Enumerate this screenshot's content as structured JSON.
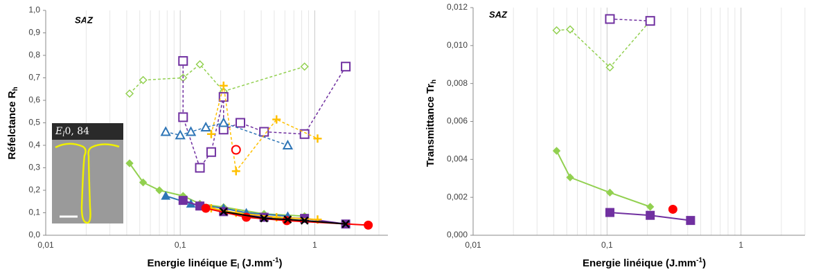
{
  "chart_data": [
    {
      "type": "scatter",
      "log_x": true,
      "x_grid": true,
      "x_minor_grid": true,
      "y_grid": false,
      "ylabel": [
        "Réfelctance R",
        "h"
      ],
      "xlabel": [
        "Energie linéique E",
        "l",
        " (J.mm",
        "-1",
        ")"
      ],
      "annotation": "SAZ",
      "inset_label": [
        "E",
        "l",
        "0, 84"
      ],
      "xlim": [
        0.01,
        3.5
      ],
      "xticks": [
        {
          "value": 0.01,
          "label": "0,01"
        },
        {
          "value": 0.1,
          "label": "0,1"
        },
        1
      ],
      "ylim": [
        0,
        1
      ],
      "yticks": [
        {
          "value": 0,
          "label": "0,0"
        },
        {
          "value": 0.1,
          "label": "0,1"
        },
        {
          "value": 0.2,
          "label": "0,2"
        },
        {
          "value": 0.3,
          "label": "0,3"
        },
        {
          "value": 0.4,
          "label": "0,4"
        },
        {
          "value": 0.5,
          "label": "0,5"
        },
        {
          "value": 0.6,
          "label": "0,6"
        },
        {
          "value": 0.7,
          "label": "0,7"
        },
        {
          "value": 0.8,
          "label": "0,8"
        },
        {
          "value": 0.9,
          "label": "0,9"
        },
        {
          "value": 1,
          "label": "1,0"
        }
      ],
      "series": [
        {
          "color": "#92d050",
          "marker": "diamond",
          "filled": false,
          "line": "dashed",
          "x": [
            0.042,
            0.053,
            0.105,
            0.14,
            0.21,
            0.84
          ],
          "values": [
            0.63,
            0.69,
            0.7,
            0.76,
            0.64,
            0.75
          ]
        },
        {
          "color": "#7030a0",
          "marker": "square",
          "filled": false,
          "line": "dashed",
          "x": [
            0.105,
            0.105,
            0.14,
            0.17,
            0.21,
            0.21,
            0.28,
            0.42,
            0.84,
            1.7
          ],
          "values": [
            0.775,
            0.525,
            0.3,
            0.37,
            0.615,
            0.47,
            0.5,
            0.46,
            0.45,
            0.75
          ]
        },
        {
          "color": "#2e75b6",
          "marker": "triangle",
          "filled": false,
          "line": "dashed",
          "x": [
            0.078,
            0.1,
            0.12,
            0.155,
            0.21,
            0.63
          ],
          "values": [
            0.46,
            0.445,
            0.46,
            0.48,
            0.5,
            0.4
          ]
        },
        {
          "color": "#ffc000",
          "marker": "plus",
          "filled": false,
          "line": "dashed",
          "x": [
            0.17,
            0.21,
            0.26,
            0.52,
            1.05
          ],
          "values": [
            0.45,
            0.665,
            0.285,
            0.515,
            0.43
          ]
        },
        {
          "color": "#ff0000",
          "marker": "circle",
          "filled": false,
          "line": "none",
          "x": [
            0.26
          ],
          "values": [
            0.38
          ]
        },
        {
          "color": "#92d050",
          "marker": "diamond",
          "filled": true,
          "line": "solid",
          "x": [
            0.042,
            0.053,
            0.07,
            0.105,
            0.14,
            0.21,
            0.42,
            0.84
          ],
          "values": [
            0.32,
            0.235,
            0.2,
            0.175,
            0.14,
            0.125,
            0.095,
            0.085
          ]
        },
        {
          "color": "#2e75b6",
          "marker": "triangle",
          "filled": true,
          "line": "solid",
          "x": [
            0.078,
            0.12,
            0.21,
            0.31,
            0.63
          ],
          "values": [
            0.175,
            0.14,
            0.12,
            0.1,
            0.085
          ]
        },
        {
          "color": "#7030a0",
          "marker": "square",
          "filled": true,
          "line": "solid",
          "x": [
            0.105,
            0.14,
            0.21,
            0.42,
            0.84,
            1.7
          ],
          "values": [
            0.155,
            0.13,
            0.105,
            0.08,
            0.075,
            0.05
          ]
        },
        {
          "color": "#ffc000",
          "marker": "plus",
          "filled": true,
          "line": "solid",
          "x": [
            0.17,
            0.26,
            0.52,
            1.05
          ],
          "values": [
            0.12,
            0.1,
            0.08,
            0.07
          ]
        },
        {
          "color": "#ff0000",
          "marker": "circle",
          "filled": true,
          "line": "solid",
          "x": [
            0.155,
            0.31,
            0.62,
            2.5
          ],
          "values": [
            0.12,
            0.08,
            0.065,
            0.045
          ]
        },
        {
          "color": "#000000",
          "marker": "x",
          "filled": true,
          "line": "solid",
          "x": [
            0.21,
            0.42,
            0.63,
            0.84,
            1.7
          ],
          "values": [
            0.105,
            0.075,
            0.07,
            0.065,
            0.05
          ]
        }
      ]
    },
    {
      "type": "scatter",
      "log_x": true,
      "x_grid": true,
      "x_minor_grid": true,
      "y_grid": false,
      "ylabel": [
        "Transmittance Tr",
        "h"
      ],
      "xlabel": [
        "Energie linéique (J.mm",
        "-1",
        ")"
      ],
      "annotation": "SAZ",
      "xlim": [
        0.01,
        3
      ],
      "xticks": [
        {
          "value": 0.01,
          "label": "0,01"
        },
        {
          "value": 0.1,
          "label": "0,1"
        },
        1
      ],
      "ylim": [
        0,
        0.012
      ],
      "yticks": [
        {
          "value": 0,
          "label": "0,000"
        },
        {
          "value": 0.002,
          "label": "0,002"
        },
        {
          "value": 0.004,
          "label": "0,004"
        },
        {
          "value": 0.006,
          "label": "0,006"
        },
        {
          "value": 0.008,
          "label": "0,008"
        },
        {
          "value": 0.01,
          "label": "0,010"
        },
        {
          "value": 0.012,
          "label": "0,012"
        }
      ],
      "series": [
        {
          "color": "#92d050",
          "marker": "diamond",
          "filled": false,
          "line": "dashed",
          "x": [
            0.042,
            0.053,
            0.105,
            0.21
          ],
          "values": [
            0.0108,
            0.01085,
            0.00885,
            0.0113
          ]
        },
        {
          "color": "#7030a0",
          "marker": "square",
          "filled": false,
          "line": "dashed",
          "x": [
            0.105,
            0.21
          ],
          "values": [
            0.0114,
            0.0113
          ]
        },
        {
          "color": "#92d050",
          "marker": "diamond",
          "filled": true,
          "line": "solid",
          "x": [
            0.042,
            0.053,
            0.105,
            0.21
          ],
          "values": [
            0.00445,
            0.00305,
            0.00225,
            0.0015
          ]
        },
        {
          "color": "#ff0000",
          "marker": "circle",
          "filled": true,
          "line": "none",
          "x": [
            0.31
          ],
          "values": [
            0.00137
          ]
        },
        {
          "color": "#7030a0",
          "marker": "square",
          "filled": true,
          "line": "solid",
          "x": [
            0.105,
            0.21,
            0.42
          ],
          "values": [
            0.0012,
            0.00105,
            0.00078
          ]
        }
      ]
    }
  ]
}
